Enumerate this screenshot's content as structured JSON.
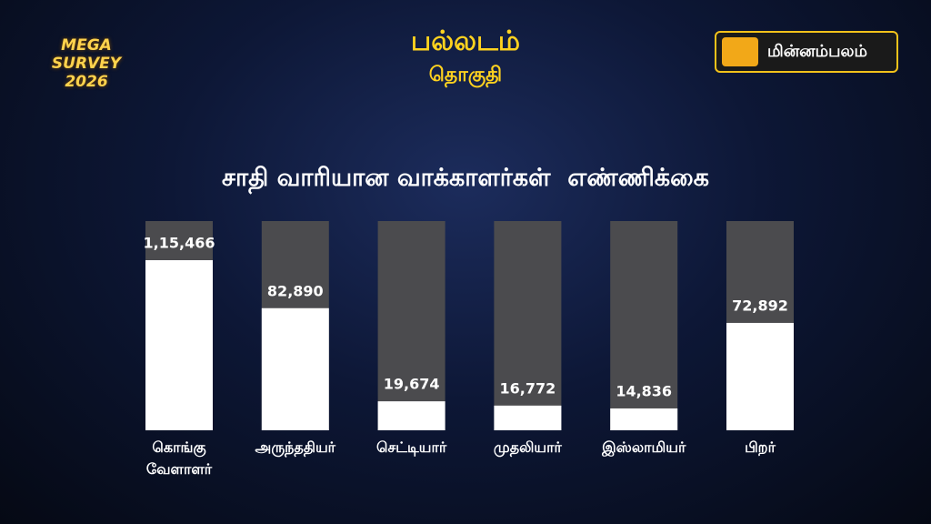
{
  "header": {
    "constituency": "பல்லடம்",
    "label": "தொகுதி"
  },
  "branding": {
    "badge": "MEGA SURVEY",
    "year": "2026",
    "logo": "மின்னம்பலம்"
  },
  "chart_data": {
    "type": "bar",
    "title": "சாதி வாரியான வாக்காளர்கள்  எண்ணிக்கை",
    "categories": [
      "கொங்கு வேளாளர்",
      "அருந்ததியர்",
      "செட்டியார்",
      "முதலியார்",
      "இஸ்லாமியர்",
      "பிறர்"
    ],
    "values": [
      115466,
      82890,
      19674,
      16772,
      14836,
      72892
    ],
    "value_labels": [
      "1,15,466",
      "82,890",
      "19,674",
      "16,772",
      "14,836",
      "72,892"
    ],
    "color": "#ffffff"
  }
}
